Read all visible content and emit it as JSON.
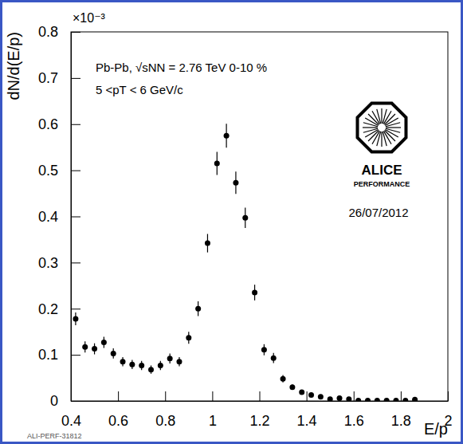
{
  "chart_data": {
    "type": "scatter",
    "x_label": "E/p",
    "y_label": "dN/d(E/p)",
    "annotations": [
      "×10⁻³",
      "Pb-Pb, √sNN = 2.76 TeV 0-10 %",
      "5 <pT < 6 GeV/c",
      "ALICE",
      "PERFORMANCE",
      "26/07/2012",
      "ALI-PERF-31812"
    ],
    "x": [
      0.42,
      0.46,
      0.5,
      0.54,
      0.58,
      0.62,
      0.66,
      0.7,
      0.74,
      0.78,
      0.82,
      0.86,
      0.9,
      0.94,
      0.98,
      1.02,
      1.06,
      1.1,
      1.14,
      1.18,
      1.22,
      1.26,
      1.3,
      1.34,
      1.38,
      1.42,
      1.46,
      1.5,
      1.54,
      1.58,
      1.62,
      1.66,
      1.7,
      1.74,
      1.78,
      1.82,
      1.86
    ],
    "series": [
      {
        "color": "#000000",
        "marker": "circle",
        "values": [
          0.178,
          0.117,
          0.113,
          0.127,
          0.103,
          0.085,
          0.079,
          0.077,
          0.068,
          0.077,
          0.092,
          0.085,
          0.137,
          0.2,
          0.342,
          0.515,
          0.575,
          0.473,
          0.397,
          0.235,
          0.111,
          0.093,
          0.048,
          0.03,
          0.019,
          0.013,
          0.009,
          0.004,
          0.006,
          0.004,
          0.001,
          0.001,
          0.001,
          0.001,
          0.001,
          0.001,
          0.003
        ],
        "errors": [
          0.014,
          0.012,
          0.012,
          0.012,
          0.011,
          0.01,
          0.01,
          0.01,
          0.009,
          0.01,
          0.011,
          0.01,
          0.013,
          0.016,
          0.02,
          0.025,
          0.026,
          0.024,
          0.022,
          0.017,
          0.012,
          0.011,
          0.008,
          0.006,
          0.005,
          0.004,
          0.003,
          0.002,
          0.003,
          0.002,
          0.001,
          0.001,
          0.001,
          0.001,
          0.001,
          0.001,
          0.002
        ]
      }
    ],
    "xlim": [
      0.4,
      2
    ],
    "xticks": [
      0.4,
      0.6,
      0.8,
      1,
      1.2,
      1.4,
      1.6,
      1.8,
      2
    ],
    "ylim": [
      0,
      0.8
    ],
    "yticks": [
      0,
      0.1,
      0.2,
      0.3,
      0.4,
      0.5,
      0.6,
      0.7,
      0.8
    ],
    "grid": false
  }
}
